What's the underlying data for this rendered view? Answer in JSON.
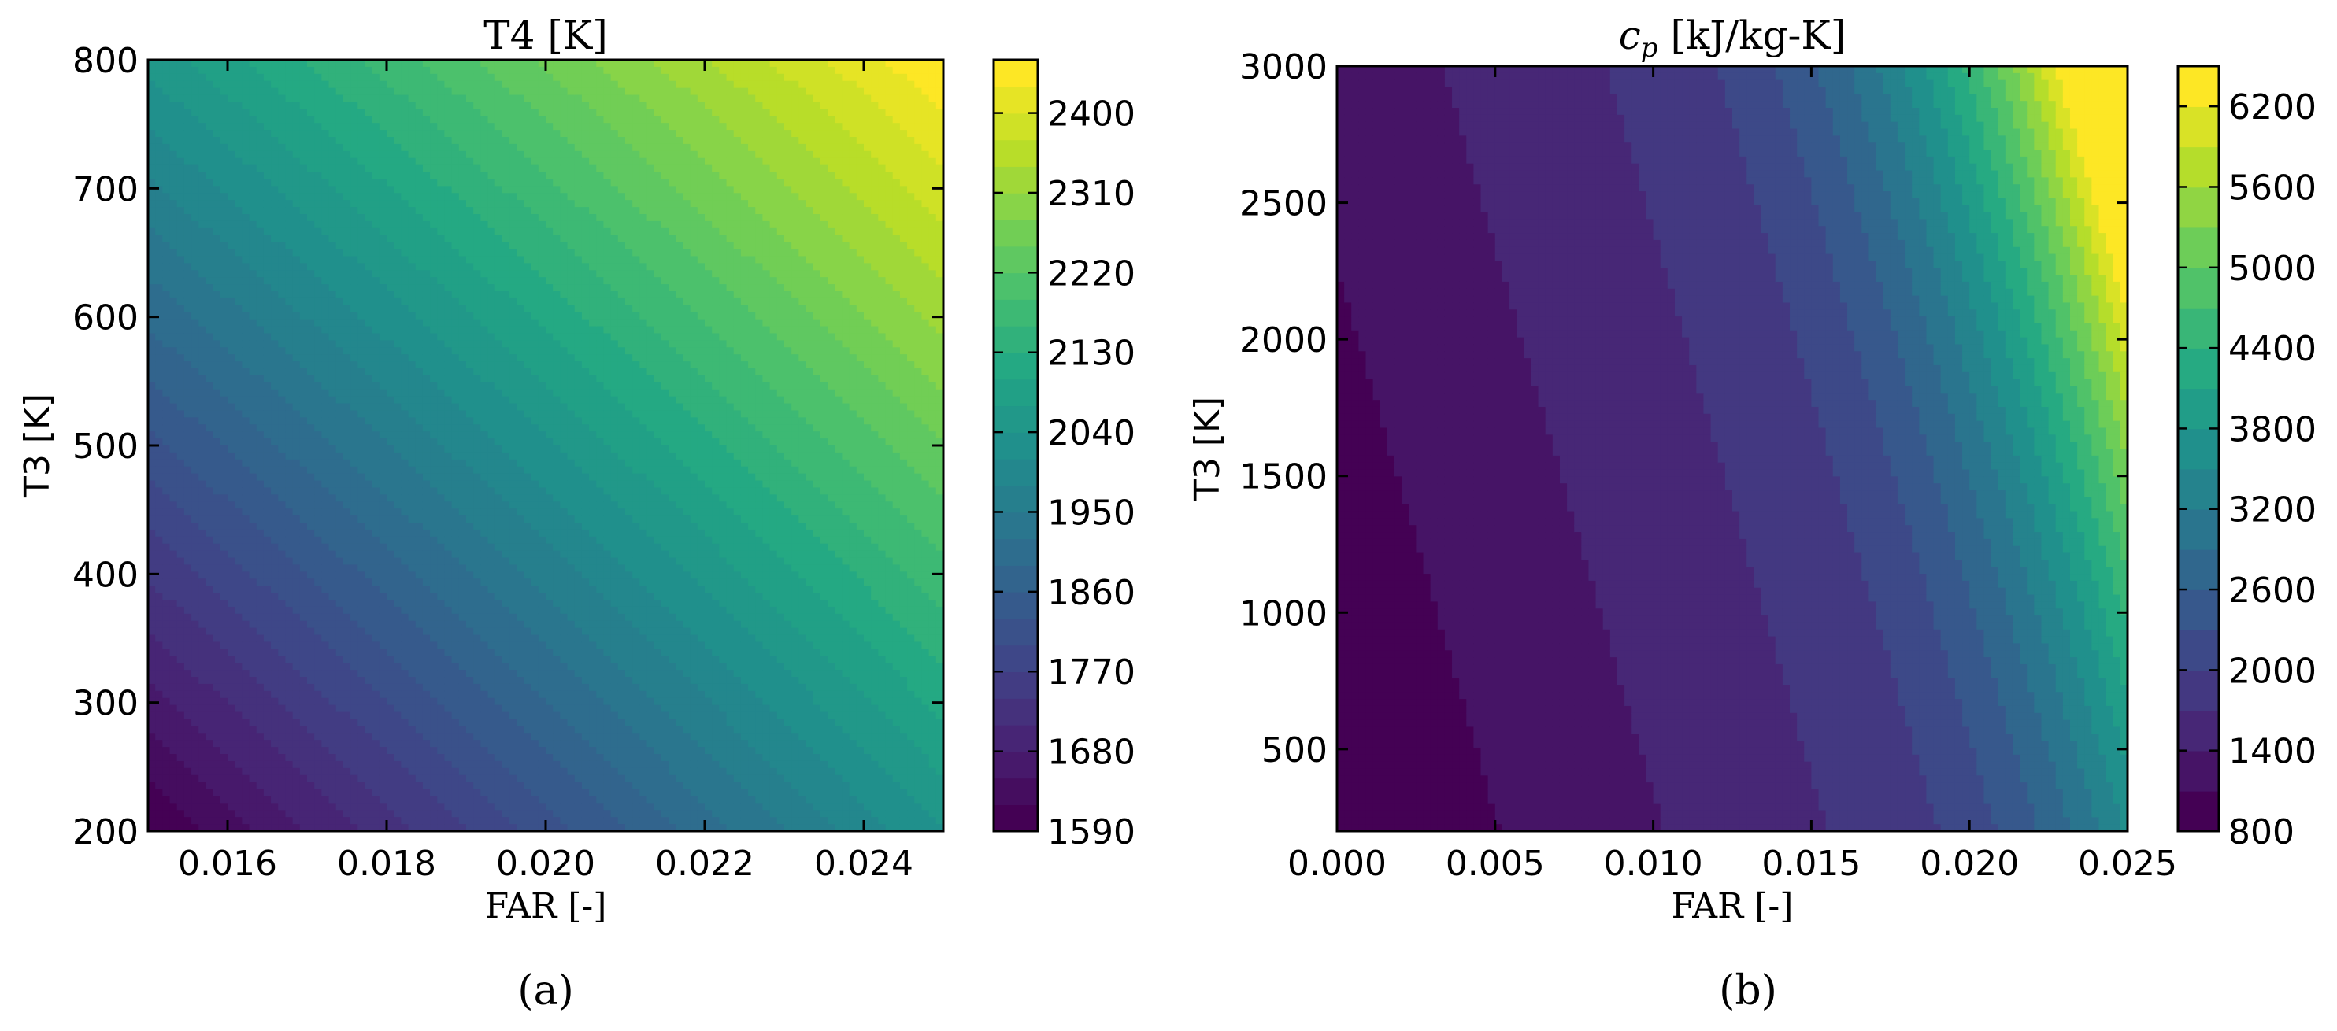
{
  "colormap": "viridis",
  "chart_data": [
    {
      "type": "heatmap",
      "panel_label": "(a)",
      "title": "T4 [K]",
      "xlabel": "FAR [-]",
      "ylabel": "T3 [K]",
      "xlim": [
        0.015,
        0.025
      ],
      "ylim": [
        200,
        800
      ],
      "xticks": [
        "0.016",
        "0.018",
        "0.020",
        "0.022",
        "0.024"
      ],
      "xtick_values": [
        0.016,
        0.018,
        0.02,
        0.022,
        0.024
      ],
      "yticks": [
        "200",
        "300",
        "400",
        "500",
        "600",
        "700",
        "800"
      ],
      "ytick_values": [
        200,
        300,
        400,
        500,
        600,
        700,
        800
      ],
      "colorbar": {
        "range": [
          1590,
          2460
        ],
        "ticks": [
          "1590",
          "1680",
          "1770",
          "1860",
          "1950",
          "2040",
          "2130",
          "2220",
          "2310",
          "2400"
        ],
        "tick_values": [
          1590,
          1680,
          1770,
          1860,
          1950,
          2040,
          2130,
          2220,
          2310,
          2400
        ]
      },
      "corner_values": {
        "min_far_min_t3": 1590,
        "max_far_min_t3": 2040,
        "min_far_max_t3": 2050,
        "max_far_max_t3": 2460
      },
      "levels": 29
    },
    {
      "type": "heatmap",
      "panel_label": "(b)",
      "title_main": "c",
      "title_sub": "p",
      "title_rest": " [kJ/kg-K]",
      "xlabel": "FAR [-]",
      "ylabel": "T3 [K]",
      "xlim": [
        0.0,
        0.025
      ],
      "ylim": [
        200,
        3000
      ],
      "xticks": [
        "0.000",
        "0.005",
        "0.010",
        "0.015",
        "0.020",
        "0.025"
      ],
      "xtick_values": [
        0.0,
        0.005,
        0.01,
        0.015,
        0.02,
        0.025
      ],
      "yticks": [
        "500",
        "1000",
        "1500",
        "2000",
        "2500",
        "3000"
      ],
      "ytick_values": [
        500,
        1000,
        1500,
        2000,
        2500,
        3000
      ],
      "colorbar": {
        "range": [
          800,
          6500
        ],
        "ticks": [
          "800",
          "1400",
          "2000",
          "2600",
          "3200",
          "3800",
          "4400",
          "5000",
          "5600",
          "6200"
        ],
        "tick_values": [
          800,
          1400,
          2000,
          2600,
          3200,
          3800,
          4400,
          5000,
          5600,
          6200
        ]
      },
      "levels": 19
    }
  ]
}
